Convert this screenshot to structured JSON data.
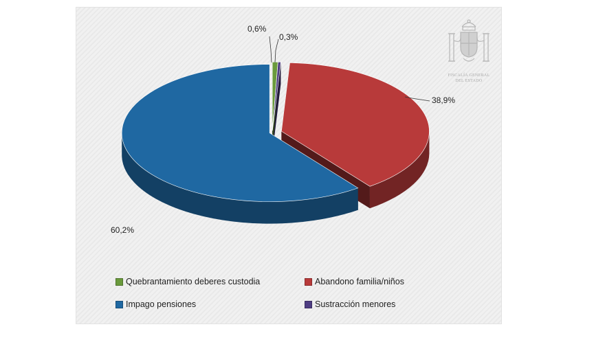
{
  "chart_data": {
    "type": "pie",
    "title": "",
    "categories": [
      "Quebrantamiento deberes custodia",
      "Abandono familia/niños",
      "Impago pensiones",
      "Sustracción menores"
    ],
    "values": [
      0.6,
      38.9,
      60.2,
      0.3
    ],
    "value_labels": [
      "0,6%",
      "38,9%",
      "60,2%",
      "0,3%"
    ],
    "colors": [
      "#6a9a3c",
      "#b83a3a",
      "#1f68a2",
      "#4e3d82"
    ],
    "legend_placement": "bottom"
  },
  "emblem": {
    "caption_line1": "FISCALÍA GENERAL",
    "caption_line2": "DEL ESTADO"
  }
}
